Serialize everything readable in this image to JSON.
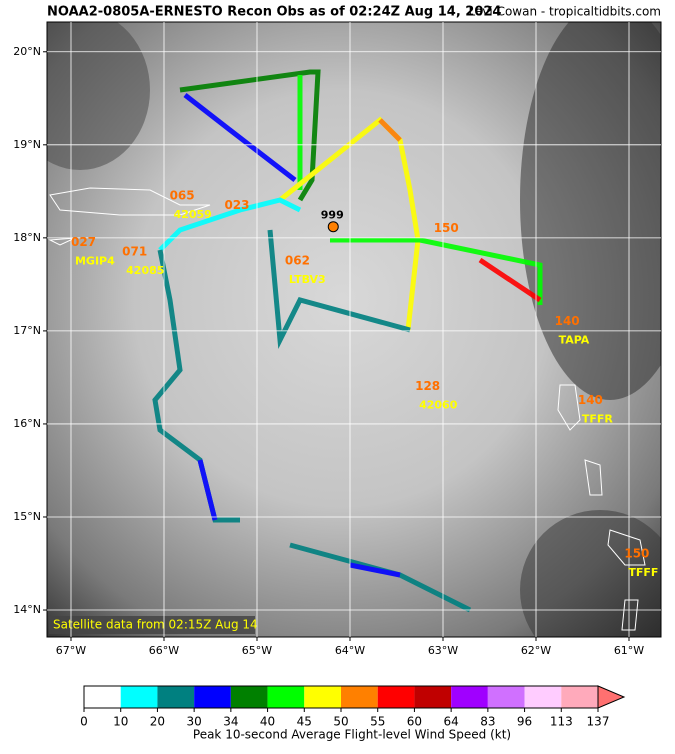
{
  "title": "NOAA2-0805A-ERNESTO Recon Obs as of 02:24Z Aug 14, 2024",
  "credit": "Levi Cowan - tropicaltidbits.com",
  "map": {
    "xlim": [
      -67.258,
      -60.656
    ],
    "ylim": [
      13.71,
      20.32
    ],
    "xticks": [
      {
        "value": -67,
        "label": "67°W"
      },
      {
        "value": -66,
        "label": "66°W"
      },
      {
        "value": -65,
        "label": "65°W"
      },
      {
        "value": -64,
        "label": "64°W"
      },
      {
        "value": -63,
        "label": "63°W"
      },
      {
        "value": -62,
        "label": "62°W"
      },
      {
        "value": -61,
        "label": "61°W"
      }
    ],
    "yticks": [
      {
        "value": 14,
        "label": "14°N"
      },
      {
        "value": 15,
        "label": "15°N"
      },
      {
        "value": 16,
        "label": "16°N"
      },
      {
        "value": 17,
        "label": "17°N"
      },
      {
        "value": 18,
        "label": "18°N"
      },
      {
        "value": 19,
        "label": "19°N"
      },
      {
        "value": 20,
        "label": "20°N"
      }
    ],
    "stations": [
      {
        "value": "065",
        "id": "42059",
        "lon": -65.94,
        "lat": 18.45
      },
      {
        "value": "027",
        "id": "MGIP4",
        "lon": -67.0,
        "lat": 17.95
      },
      {
        "value": "071",
        "id": "42085",
        "lon": -66.45,
        "lat": 17.85
      },
      {
        "value": "023",
        "id": "",
        "lon": -65.35,
        "lat": 18.35
      },
      {
        "value": "062",
        "id": "LTBV3",
        "lon": -64.7,
        "lat": 17.75
      },
      {
        "value": "150",
        "id": "",
        "lon": -63.1,
        "lat": 18.1
      },
      {
        "value": "140",
        "id": "TAPA",
        "lon": -61.8,
        "lat": 17.1
      },
      {
        "value": "128",
        "id": "42060",
        "lon": -63.3,
        "lat": 16.4
      },
      {
        "value": "140",
        "id": "TFFR",
        "lon": -61.55,
        "lat": 16.25
      },
      {
        "value": "150",
        "id": "TFFF",
        "lon": -61.05,
        "lat": 14.6
      }
    ],
    "pressure": {
      "label": "999",
      "lon": -64.18,
      "lat": 18.12
    },
    "satellite_note": "Satellite data from 02:15Z Aug 14"
  },
  "colorbar": {
    "bins": [
      0,
      10,
      20,
      30,
      34,
      40,
      45,
      50,
      55,
      60,
      64,
      83,
      96,
      113,
      137
    ],
    "colors": [
      "#ffffff",
      "#00ffff",
      "#008080",
      "#0000ff",
      "#008000",
      "#00ff00",
      "#ffff00",
      "#ff8000",
      "#ff0000",
      "#c00000",
      "#a000ff",
      "#d070ff",
      "#ffccff",
      "#ffaabb"
    ],
    "extend_color": "#ff7070",
    "label": "Peak 10-second Average Flight-level Wind Speed (kt)"
  }
}
